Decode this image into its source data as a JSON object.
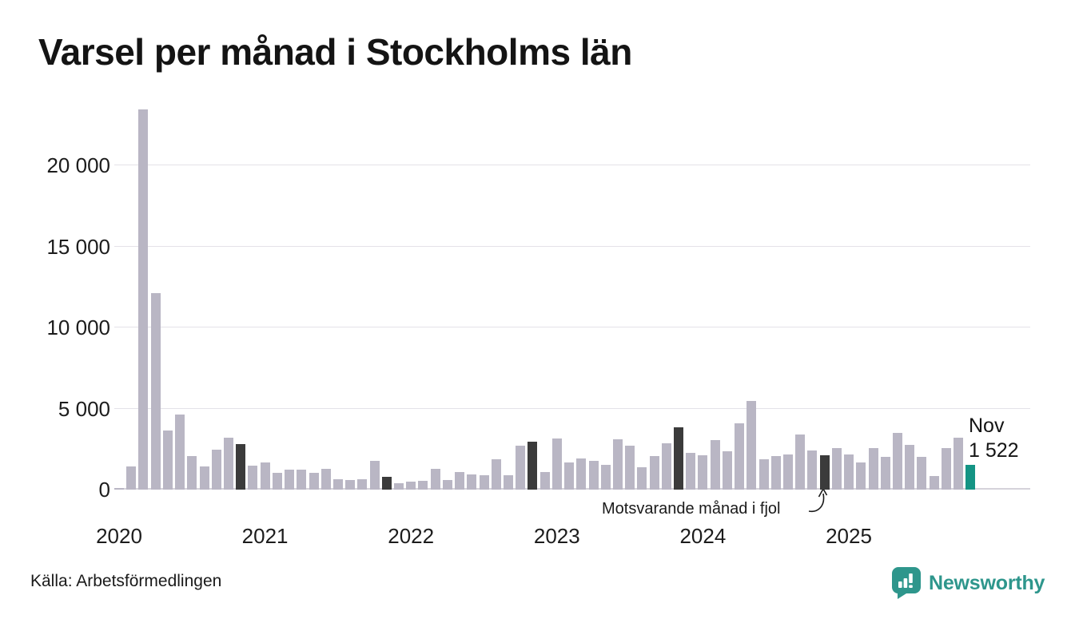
{
  "title": "Varsel per månad i Stockholms län",
  "source": "Källa: Arbetsförmedlingen",
  "brand": {
    "name": "Newsworthy"
  },
  "annotation_last_year": "Motsvarande månad i fjol",
  "annotation_current": {
    "line1": "Nov",
    "line2": "1 522"
  },
  "colors": {
    "bar": "#b9b6c4",
    "bar_last_year": "#3b3b3b",
    "bar_current": "#149484",
    "grid": "#e4e2e8",
    "axis": "#d5d2da",
    "text": "#1a1a1a",
    "brand": "#2e968c"
  },
  "chart_data": {
    "type": "bar",
    "title": "Varsel per månad i Stockholms län",
    "x_start": "2020-01",
    "x_end": "2025-11",
    "x_year_labels": [
      "2020",
      "2021",
      "2022",
      "2023",
      "2024",
      "2025"
    ],
    "y_ticks": [
      0,
      5000,
      10000,
      15000,
      20000
    ],
    "y_tick_labels": [
      "0",
      "5 000",
      "10 000",
      "15 000",
      "20 000"
    ],
    "ylim": [
      0,
      23842
    ],
    "grid": true,
    "values": [
      100,
      1450,
      23450,
      12100,
      3650,
      4650,
      2070,
      1430,
      2460,
      3200,
      2810,
      1490,
      1700,
      1030,
      1230,
      1230,
      1030,
      1280,
      640,
      590,
      640,
      1770,
      790,
      400,
      490,
      540,
      1280,
      590,
      1080,
      940,
      890,
      1870,
      890,
      2710,
      2950,
      1080,
      3150,
      1680,
      1920,
      1770,
      1530,
      3100,
      2710,
      1380,
      2070,
      2860,
      3840,
      2270,
      2120,
      3050,
      2360,
      4090,
      5470,
      1870,
      2070,
      2170,
      3400,
      2410,
      2100,
      2560,
      2170,
      1680,
      2560,
      2020,
      3500,
      2760,
      2020,
      840,
      2560,
      3200,
      1522
    ],
    "last_year_highlight_indices": [
      10,
      22,
      34,
      46,
      58
    ],
    "current_highlight_index": 70,
    "current_point": {
      "month": "Nov",
      "year": 2025,
      "value": 1522,
      "value_label": "1 522"
    },
    "legend_position": "none"
  }
}
